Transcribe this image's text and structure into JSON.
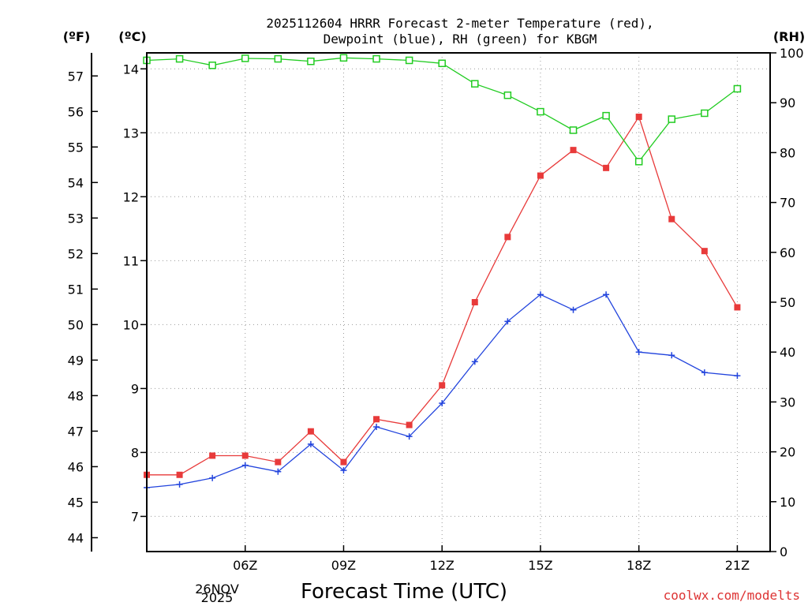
{
  "chart_data": {
    "type": "line",
    "title_line1": "2025112604 HRRR Forecast 2-meter Temperature (red),",
    "title_line2": "Dewpoint (blue), RH (green) for KBGM",
    "xlabel": "Forecast Time (UTC)",
    "date_label_line1": "26NOV",
    "date_label_line2": "2025",
    "credit": "coolwx.com/modelts",
    "units": {
      "left_outer": "(ºF)",
      "left_inner": "(ºC)",
      "right": "(RH)"
    },
    "x_hours": [
      3,
      4,
      5,
      6,
      7,
      8,
      9,
      10,
      11,
      12,
      13,
      14,
      15,
      16,
      17,
      18,
      19,
      20,
      21,
      22
    ],
    "x_range": [
      3,
      22
    ],
    "x_ticks": [
      {
        "hour": 6,
        "label": "06Z"
      },
      {
        "hour": 9,
        "label": "09Z"
      },
      {
        "hour": 12,
        "label": "12Z"
      },
      {
        "hour": 15,
        "label": "15Z"
      },
      {
        "hour": 18,
        "label": "18Z"
      },
      {
        "hour": 21,
        "label": "21Z"
      }
    ],
    "celsius_range": [
      6.45,
      14.25
    ],
    "celsius_ticks": [
      7,
      8,
      9,
      10,
      11,
      12,
      13,
      14
    ],
    "fahrenheit_ticks": [
      44,
      45,
      46,
      47,
      48,
      49,
      50,
      51,
      52,
      53,
      54,
      55,
      56,
      57
    ],
    "rh_range": [
      0,
      100
    ],
    "rh_ticks": [
      0,
      10,
      20,
      30,
      40,
      50,
      60,
      70,
      80,
      90,
      100
    ],
    "series": [
      {
        "name": "2-meter Temperature",
        "axis": "celsius",
        "color": "#e83a3a",
        "marker": "filled-square",
        "values": [
          7.65,
          7.65,
          7.95,
          7.95,
          7.85,
          8.33,
          7.85,
          8.52,
          8.43,
          9.05,
          10.35,
          11.37,
          12.33,
          12.73,
          12.45,
          13.25,
          11.65,
          11.15,
          10.27,
          null
        ]
      },
      {
        "name": "Dewpoint",
        "axis": "celsius",
        "color": "#2244dd",
        "marker": "plus",
        "values": [
          7.45,
          7.5,
          7.6,
          7.8,
          7.7,
          8.13,
          7.72,
          8.4,
          8.25,
          8.77,
          9.42,
          10.05,
          10.47,
          10.23,
          10.47,
          9.57,
          9.52,
          9.25,
          9.2,
          null
        ]
      },
      {
        "name": "RH",
        "axis": "rh",
        "color": "#22cc22",
        "marker": "open-square",
        "values": [
          98.5,
          98.8,
          97.5,
          98.9,
          98.8,
          98.3,
          99,
          98.8,
          98.5,
          97.9,
          93.8,
          91.5,
          88.2,
          84.5,
          87.4,
          78.2,
          86.7,
          87.9,
          92.8,
          null
        ]
      }
    ]
  }
}
